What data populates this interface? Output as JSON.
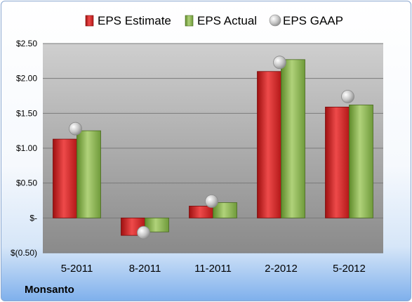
{
  "company": "Monsanto",
  "chart_data": {
    "type": "bar",
    "categories": [
      "5-2011",
      "8-2011",
      "11-2011",
      "2-2012",
      "5-2012"
    ],
    "series": [
      {
        "name": "EPS Estimate",
        "kind": "bar",
        "color": "#cc1f1f",
        "values": [
          1.13,
          -0.25,
          0.17,
          2.1,
          1.59
        ]
      },
      {
        "name": "EPS Actual",
        "kind": "bar",
        "color": "#8db255",
        "values": [
          1.25,
          -0.2,
          0.22,
          2.27,
          1.62
        ]
      },
      {
        "name": "EPS GAAP",
        "kind": "marker",
        "color": "#b8b8b8",
        "values": [
          1.28,
          -0.21,
          0.24,
          2.23,
          1.74
        ]
      }
    ],
    "ylim": [
      -0.5,
      2.5
    ],
    "yticks": [
      {
        "value": 2.5,
        "label": "$2.50"
      },
      {
        "value": 2.0,
        "label": "$2.00"
      },
      {
        "value": 1.5,
        "label": "$1.50"
      },
      {
        "value": 1.0,
        "label": "$1.00"
      },
      {
        "value": 0.5,
        "label": "$0.50"
      },
      {
        "value": 0.0,
        "label": "$-"
      },
      {
        "value": -0.5,
        "label": "$(0.50)"
      }
    ],
    "grid": true,
    "legend": "top"
  }
}
